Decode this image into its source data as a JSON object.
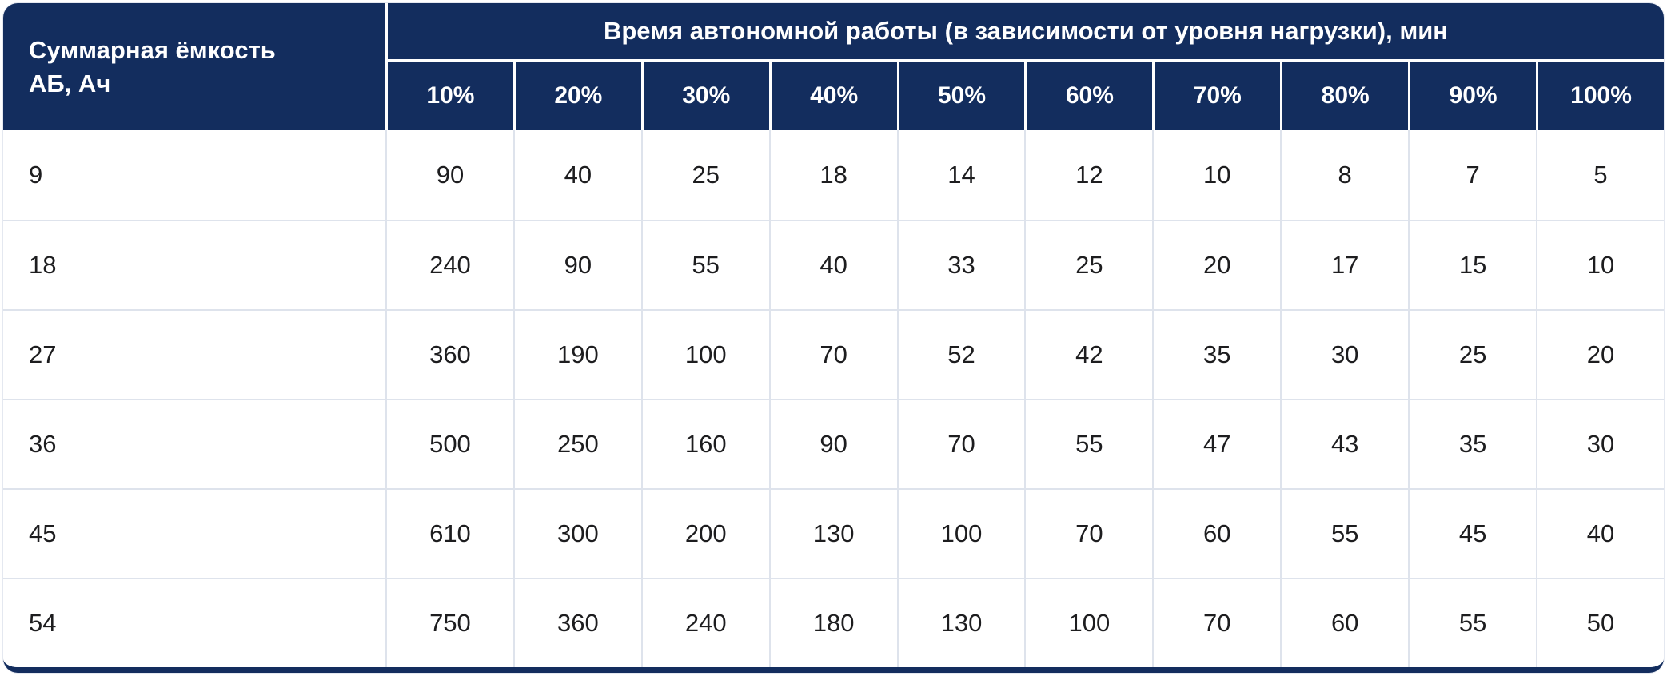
{
  "chart_data": {
    "type": "table",
    "corner_header": "Суммарная ёмкость АБ, Ач",
    "group_header": "Время автономной работы (в зависимости от уровня нагрузки), мин",
    "load_level_columns": [
      "10%",
      "20%",
      "30%",
      "40%",
      "50%",
      "60%",
      "70%",
      "80%",
      "90%",
      "100%"
    ],
    "rows": [
      {
        "capacity": "9",
        "runtime_minutes": [
          90,
          40,
          25,
          18,
          14,
          12,
          10,
          8,
          7,
          5
        ]
      },
      {
        "capacity": "18",
        "runtime_minutes": [
          240,
          90,
          55,
          40,
          33,
          25,
          20,
          17,
          15,
          10
        ]
      },
      {
        "capacity": "27",
        "runtime_minutes": [
          360,
          190,
          100,
          70,
          52,
          42,
          35,
          30,
          25,
          20
        ]
      },
      {
        "capacity": "36",
        "runtime_minutes": [
          500,
          250,
          160,
          90,
          70,
          55,
          47,
          43,
          35,
          30
        ]
      },
      {
        "capacity": "45",
        "runtime_minutes": [
          610,
          300,
          200,
          130,
          100,
          70,
          60,
          55,
          45,
          40
        ]
      },
      {
        "capacity": "54",
        "runtime_minutes": [
          750,
          360,
          240,
          180,
          130,
          100,
          70,
          60,
          55,
          50
        ]
      }
    ]
  },
  "colors": {
    "header_bg": "#132D5E",
    "header_text": "#FFFFFF",
    "body_bg": "#FFFFFF",
    "body_text": "#1D1D1F",
    "grid_line": "#DEE3EC",
    "header_divider": "#FFFFFF",
    "bottom_bar": "#132D5E"
  }
}
